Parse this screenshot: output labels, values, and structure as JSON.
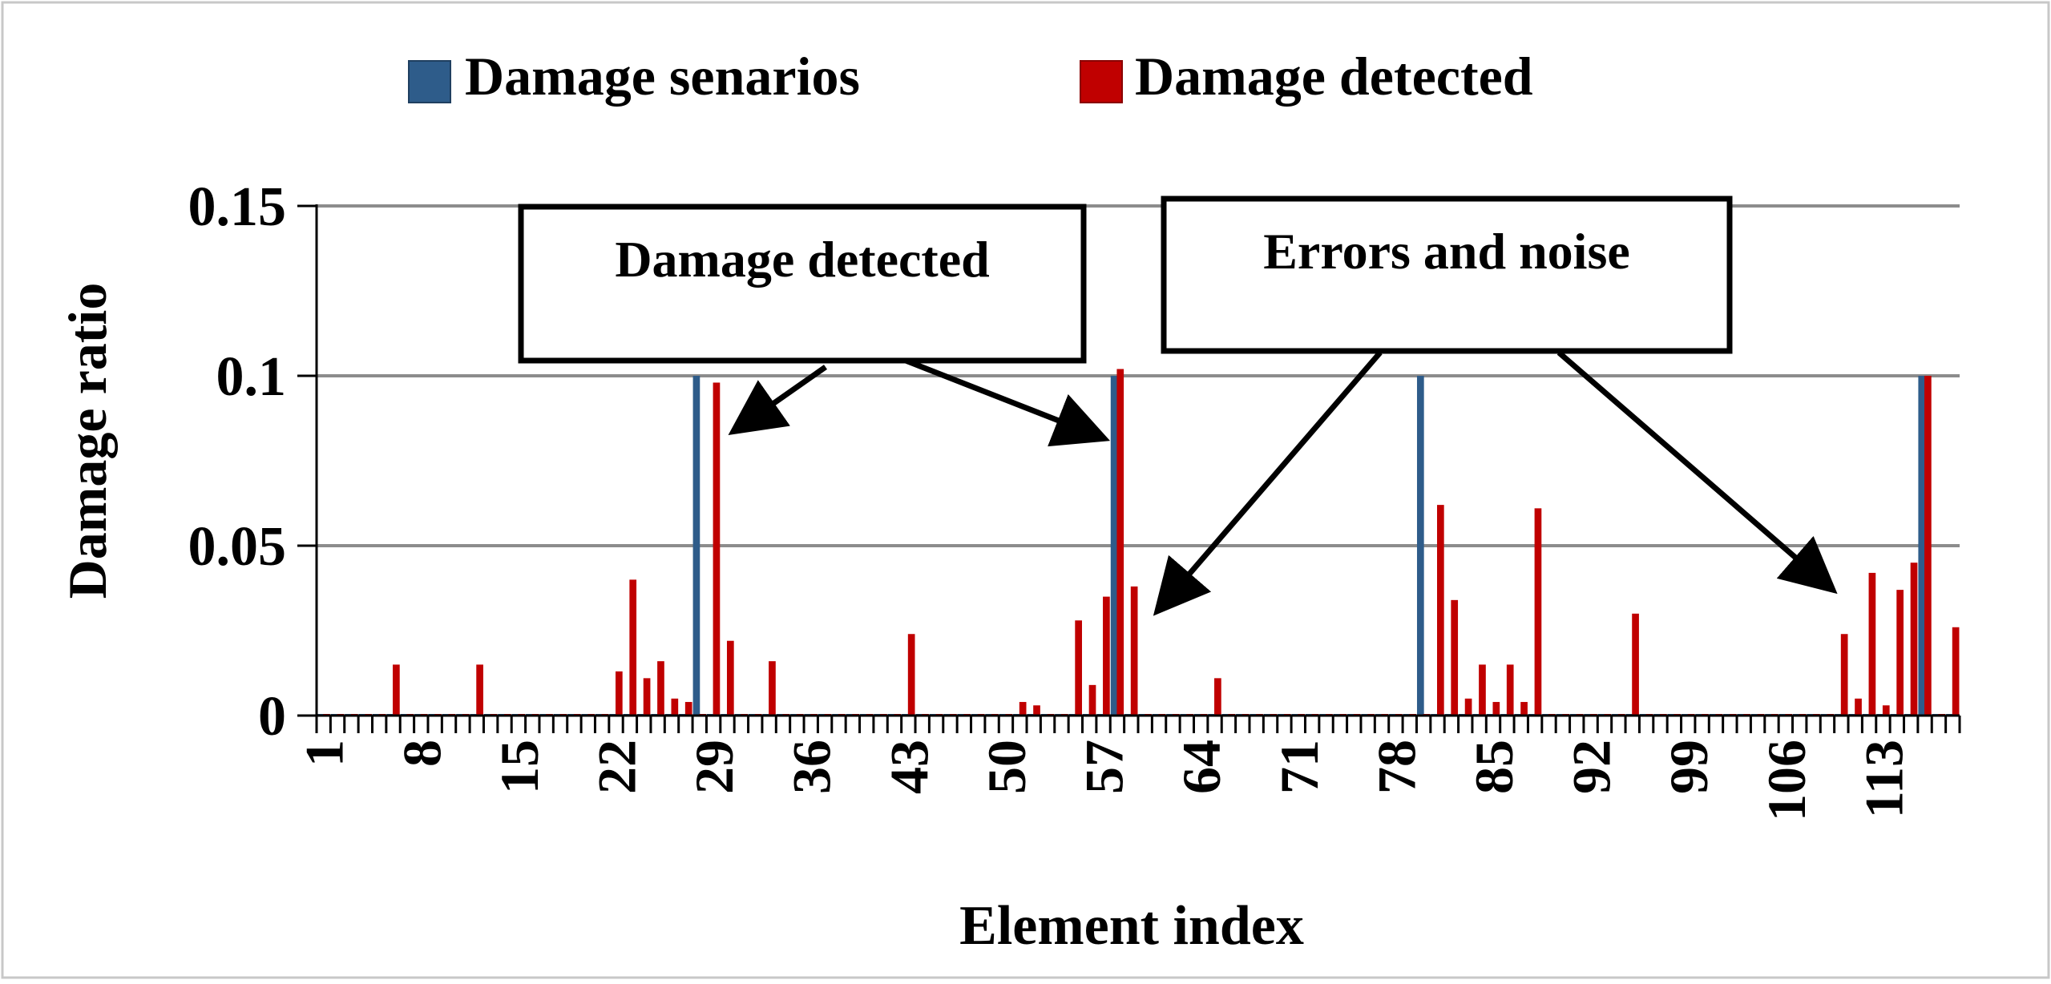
{
  "chart_data": {
    "type": "bar",
    "xlabel": "Element index",
    "ylabel": "Damage ratio",
    "ylim": [
      0,
      0.15
    ],
    "yticks": [
      "0",
      "0.05",
      "0.1",
      "0.15"
    ],
    "xtick_labels": [
      "1",
      "8",
      "15",
      "22",
      "29",
      "36",
      "43",
      "50",
      "57",
      "64",
      "71",
      "78",
      "85",
      "92",
      "99",
      "106",
      "113"
    ],
    "xtick_step": 7,
    "n_elements": 118,
    "grid": "horizontal",
    "legend_position": "top",
    "series": [
      {
        "name": "Damage senarios",
        "color": "#2E5C8A",
        "values": [
          0,
          0,
          0,
          0,
          0,
          0,
          0,
          0,
          0,
          0,
          0,
          0,
          0,
          0,
          0,
          0,
          0,
          0,
          0,
          0,
          0,
          0,
          0,
          0,
          0,
          0,
          0,
          0.1,
          0,
          0,
          0,
          0,
          0,
          0,
          0,
          0,
          0,
          0,
          0,
          0,
          0,
          0,
          0,
          0,
          0,
          0,
          0,
          0,
          0,
          0,
          0,
          0,
          0,
          0,
          0,
          0,
          0,
          0.1,
          0,
          0,
          0,
          0,
          0,
          0,
          0,
          0,
          0,
          0,
          0,
          0,
          0,
          0,
          0,
          0,
          0,
          0,
          0,
          0,
          0,
          0.1,
          0,
          0,
          0,
          0,
          0,
          0,
          0,
          0,
          0,
          0,
          0,
          0,
          0,
          0,
          0,
          0,
          0,
          0,
          0,
          0,
          0,
          0,
          0,
          0,
          0,
          0,
          0,
          0,
          0,
          0,
          0,
          0,
          0,
          0,
          0,
          0.1,
          0,
          0
        ]
      },
      {
        "name": "Damage detected",
        "color": "#C00000",
        "values": [
          0,
          0,
          0,
          0,
          0,
          0.015,
          0,
          0,
          0,
          0,
          0,
          0.015,
          0,
          0,
          0,
          0,
          0,
          0,
          0,
          0,
          0,
          0.013,
          0.04,
          0.011,
          0.016,
          0.005,
          0.004,
          0,
          0.098,
          0.022,
          0,
          0,
          0.016,
          0,
          0,
          0,
          0,
          0,
          0,
          0,
          0,
          0,
          0.024,
          0,
          0,
          0,
          0,
          0,
          0,
          0,
          0.004,
          0.003,
          0,
          0,
          0.028,
          0.009,
          0.035,
          0.102,
          0.038,
          0,
          0,
          0,
          0,
          0,
          0.011,
          0,
          0,
          0,
          0,
          0,
          0,
          0,
          0,
          0,
          0,
          0,
          0,
          0,
          0,
          0,
          0.062,
          0.034,
          0.005,
          0.015,
          0.004,
          0.015,
          0.004,
          0.061,
          0,
          0,
          0,
          0,
          0,
          0,
          0.03,
          0,
          0,
          0,
          0,
          0,
          0,
          0,
          0,
          0,
          0,
          0,
          0,
          0,
          0,
          0.024,
          0.005,
          0.042,
          0.003,
          0.037,
          0.045,
          0.1,
          0,
          0.026
        ]
      }
    ],
    "annotations": [
      {
        "text": "Damage detected",
        "points_to": [
          29,
          57
        ]
      },
      {
        "text": "Errors and noise",
        "points_to": [
          59,
          109
        ]
      }
    ]
  }
}
